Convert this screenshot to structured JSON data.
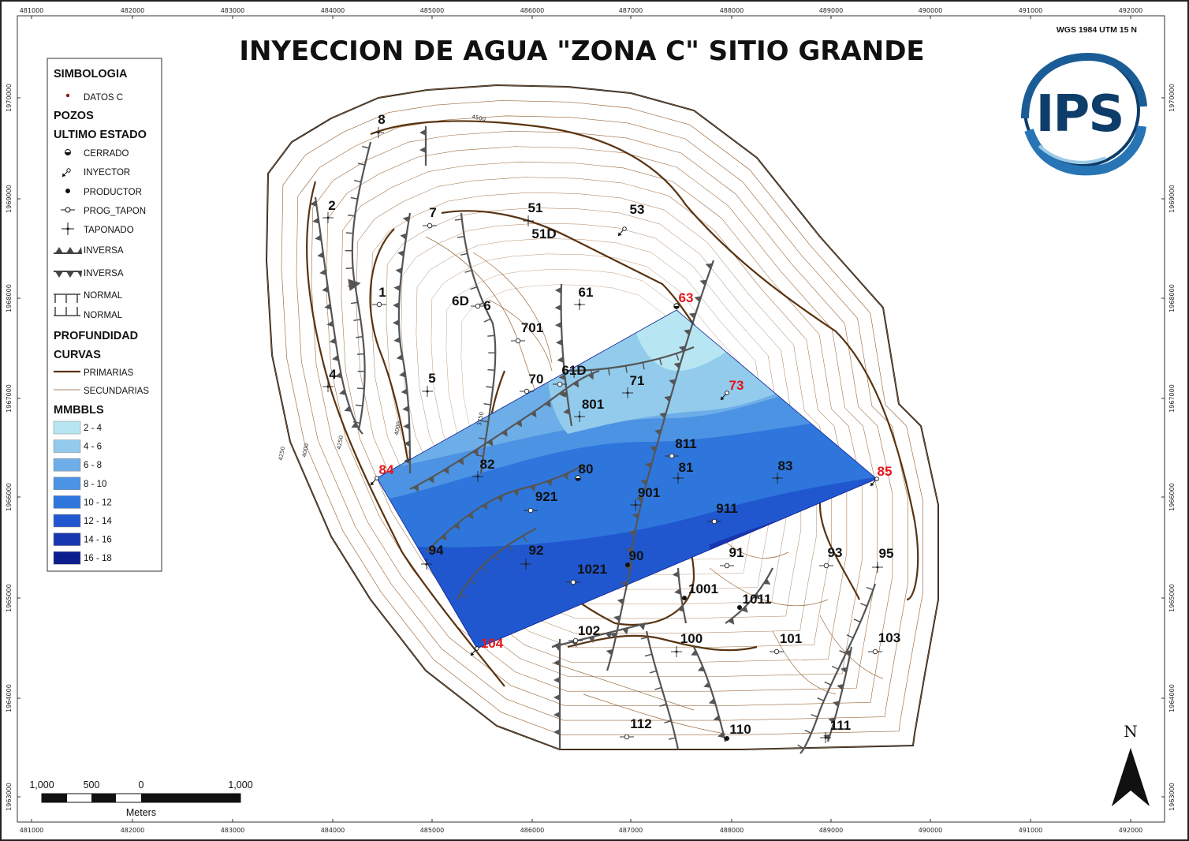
{
  "title": "INYECCION DE AGUA \"ZONA C\" SITIO GRANDE",
  "projection": "WGS 1984 UTM 15 N",
  "logo_text": "IPS",
  "north_label": "N",
  "x_ticks": [
    "481000",
    "482000",
    "483000",
    "484000",
    "485000",
    "486000",
    "487000",
    "488000",
    "489000",
    "490000",
    "491000",
    "492000"
  ],
  "y_ticks": [
    "1970000",
    "1969000",
    "1968000",
    "1967000",
    "1966000",
    "1965000",
    "1964000",
    "1963000"
  ],
  "legend": {
    "simbologia": "SIMBOLOGIA",
    "datos": "DATOS C",
    "pozos": "POZOS",
    "ultimo_estado": "ULTIMO ESTADO",
    "cerrado": "CERRADO",
    "inyector": "INYECTOR",
    "productor": "PRODUCTOR",
    "prog_tapon": "PROG_TAPON",
    "taponado": "TAPONADO",
    "inversa1": "INVERSA",
    "inversa2": "INVERSA",
    "normal1": "NORMAL",
    "normal2": "NORMAL",
    "profundidad": "PROFUNDIDAD",
    "curvas": "CURVAS",
    "primarias": "PRIMARIAS",
    "secundarias": "SECUNDARIAS",
    "mmbbls": "MMBBLS",
    "classes": [
      {
        "label": "2 - 4",
        "color": "#b7e6f2"
      },
      {
        "label": "4 - 6",
        "color": "#93cbed"
      },
      {
        "label": "6 - 8",
        "color": "#6eaee8"
      },
      {
        "label": "8 - 10",
        "color": "#4d93e4"
      },
      {
        "label": "10 - 12",
        "color": "#2e76dc"
      },
      {
        "label": "12 - 14",
        "color": "#2057cf"
      },
      {
        "label": "14 - 16",
        "color": "#1737b0"
      },
      {
        "label": "16 - 18",
        "color": "#0c1d8e"
      }
    ]
  },
  "contour_labels": [
    "4500",
    "4000",
    "4250",
    "3750",
    "4000",
    "4250"
  ],
  "scalebar": {
    "labels": [
      "1,000",
      "500",
      "0",
      "1,000"
    ],
    "units": "Meters"
  },
  "wells": [
    {
      "label": "8",
      "red": false
    },
    {
      "label": "2",
      "red": false
    },
    {
      "label": "7",
      "red": false
    },
    {
      "label": "51",
      "red": false
    },
    {
      "label": "51D",
      "red": false
    },
    {
      "label": "53",
      "red": false
    },
    {
      "label": "1",
      "red": false
    },
    {
      "label": "6D",
      "red": false
    },
    {
      "label": "6",
      "red": false
    },
    {
      "label": "61",
      "red": false
    },
    {
      "label": "63",
      "red": true
    },
    {
      "label": "701",
      "red": false
    },
    {
      "label": "4",
      "red": false
    },
    {
      "label": "5",
      "red": false
    },
    {
      "label": "70",
      "red": false
    },
    {
      "label": "61D",
      "red": false
    },
    {
      "label": "71",
      "red": false
    },
    {
      "label": "73",
      "red": true
    },
    {
      "label": "801",
      "red": false
    },
    {
      "label": "811",
      "red": false
    },
    {
      "label": "84",
      "red": true
    },
    {
      "label": "82",
      "red": false
    },
    {
      "label": "80",
      "red": false
    },
    {
      "label": "81",
      "red": false
    },
    {
      "label": "83",
      "red": false
    },
    {
      "label": "85",
      "red": true
    },
    {
      "label": "921",
      "red": false
    },
    {
      "label": "901",
      "red": false
    },
    {
      "label": "911",
      "red": false
    },
    {
      "label": "94",
      "red": false
    },
    {
      "label": "92",
      "red": false
    },
    {
      "label": "90",
      "red": false
    },
    {
      "label": "91",
      "red": false
    },
    {
      "label": "93",
      "red": false
    },
    {
      "label": "95",
      "red": false
    },
    {
      "label": "1021",
      "red": false
    },
    {
      "label": "1001",
      "red": false
    },
    {
      "label": "1011",
      "red": false
    },
    {
      "label": "104",
      "red": true
    },
    {
      "label": "102",
      "red": false
    },
    {
      "label": "100",
      "red": false
    },
    {
      "label": "101",
      "red": false
    },
    {
      "label": "103",
      "red": false
    },
    {
      "label": "112",
      "red": false
    },
    {
      "label": "110",
      "red": false
    },
    {
      "label": "111",
      "red": false
    }
  ]
}
